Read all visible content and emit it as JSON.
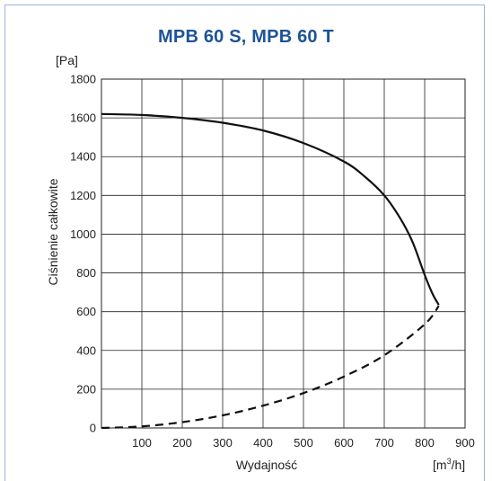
{
  "chart_data": {
    "type": "line",
    "title": "MPB 60 S, MPB 60 T",
    "ylabel": "Ciśnienie całkowite",
    "yunit": "[Pa]",
    "xlabel": "Wydajność",
    "xunit": "[m³/h]",
    "xlim": [
      0,
      900
    ],
    "ylim": [
      0,
      1800
    ],
    "x_ticks": [
      100,
      200,
      300,
      400,
      500,
      600,
      700,
      800,
      900
    ],
    "y_ticks": [
      0,
      200,
      400,
      600,
      800,
      1000,
      1200,
      1400,
      1600,
      1800
    ],
    "grid": true,
    "series": [
      {
        "style": "solid",
        "color": "#111111",
        "x": [
          0,
          100,
          200,
          300,
          400,
          500,
          600,
          650,
          700,
          740,
          770,
          800,
          820,
          835
        ],
        "y": [
          1620,
          1615,
          1600,
          1575,
          1535,
          1470,
          1375,
          1300,
          1200,
          1080,
          960,
          790,
          690,
          635
        ]
      },
      {
        "style": "dashed",
        "color": "#111111",
        "x": [
          0,
          100,
          200,
          300,
          400,
          500,
          600,
          700,
          800,
          835
        ],
        "y": [
          0,
          8,
          30,
          65,
          115,
          180,
          265,
          375,
          535,
          630
        ]
      }
    ]
  }
}
